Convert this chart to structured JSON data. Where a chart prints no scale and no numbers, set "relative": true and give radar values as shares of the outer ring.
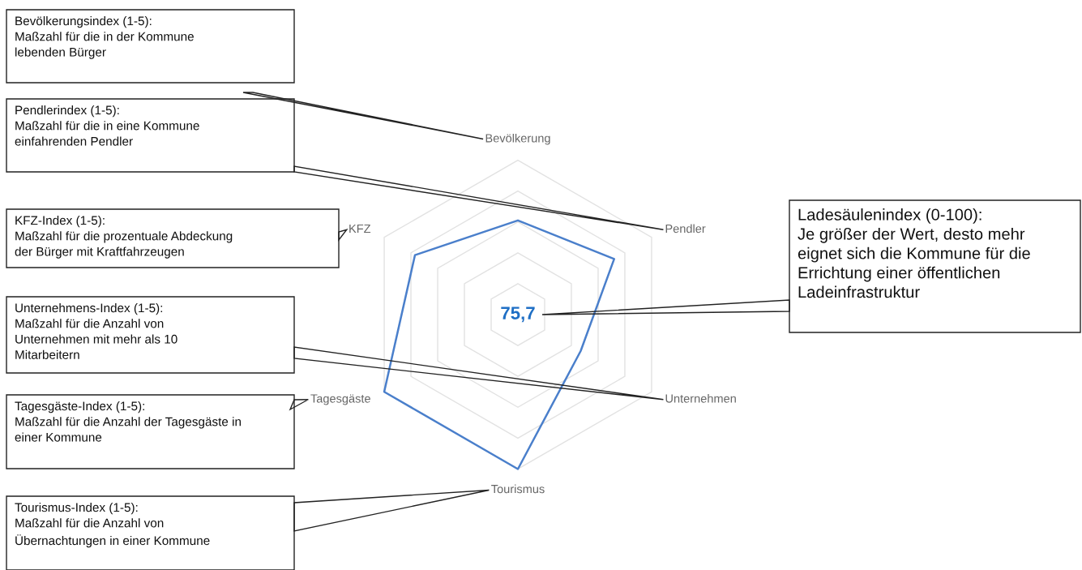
{
  "chart_data": {
    "type": "radar",
    "relative": true,
    "grid": true,
    "categories": [
      "Bevölkerung",
      "Pendler",
      "Unternehmen",
      "Tourismus",
      "Tagesgäste",
      "KFZ"
    ],
    "series": [
      {
        "color": "#4a7fcb",
        "values": [
          0.61,
          0.72,
          0.47,
          1.0,
          1.0,
          0.77
        ]
      }
    ],
    "annotations": [
      "75,7",
      "Ladesäulenindex (0-100):\nJe größer der Wert, desto mehr\neignet sich die Kommune für die\nErrichtung einer öffentlichen\nLadeinfrastruktur",
      {
        "text": "Bevölkerungsindex (1-5):\nMaßzahl für die in der Kommune\nlebenden Bürger",
        "x": "Bevölkerung"
      },
      {
        "text": "Pendlerindex (1-5):\nMaßzahl für die in eine Kommune\neinfahrenden Pendler",
        "x": "Pendler"
      },
      {
        "text": "KFZ-Index (1-5):\nMaßzahl für die prozentuale Abdeckung\nder Bürger mit Kraftfahrzeugen",
        "x": "KFZ"
      },
      {
        "text": "Unternehmens-Index (1-5):\nMaßzahl für die Anzahl von\nUnternehmen mit mehr als 10\nMitarbeitern",
        "x": "Unternehmen"
      },
      {
        "text": "Tagesgäste-Index (1-5):\nMaßzahl für die Anzahl der Tagesgäste in\neiner Kommune",
        "x": "Tagesgäste"
      },
      {
        "text": "Tourismus-Index (1-5):\nMaßzahl für die Anzahl von\nÜbernachtungen in einer Kommune",
        "x": "Tourismus"
      }
    ]
  }
}
